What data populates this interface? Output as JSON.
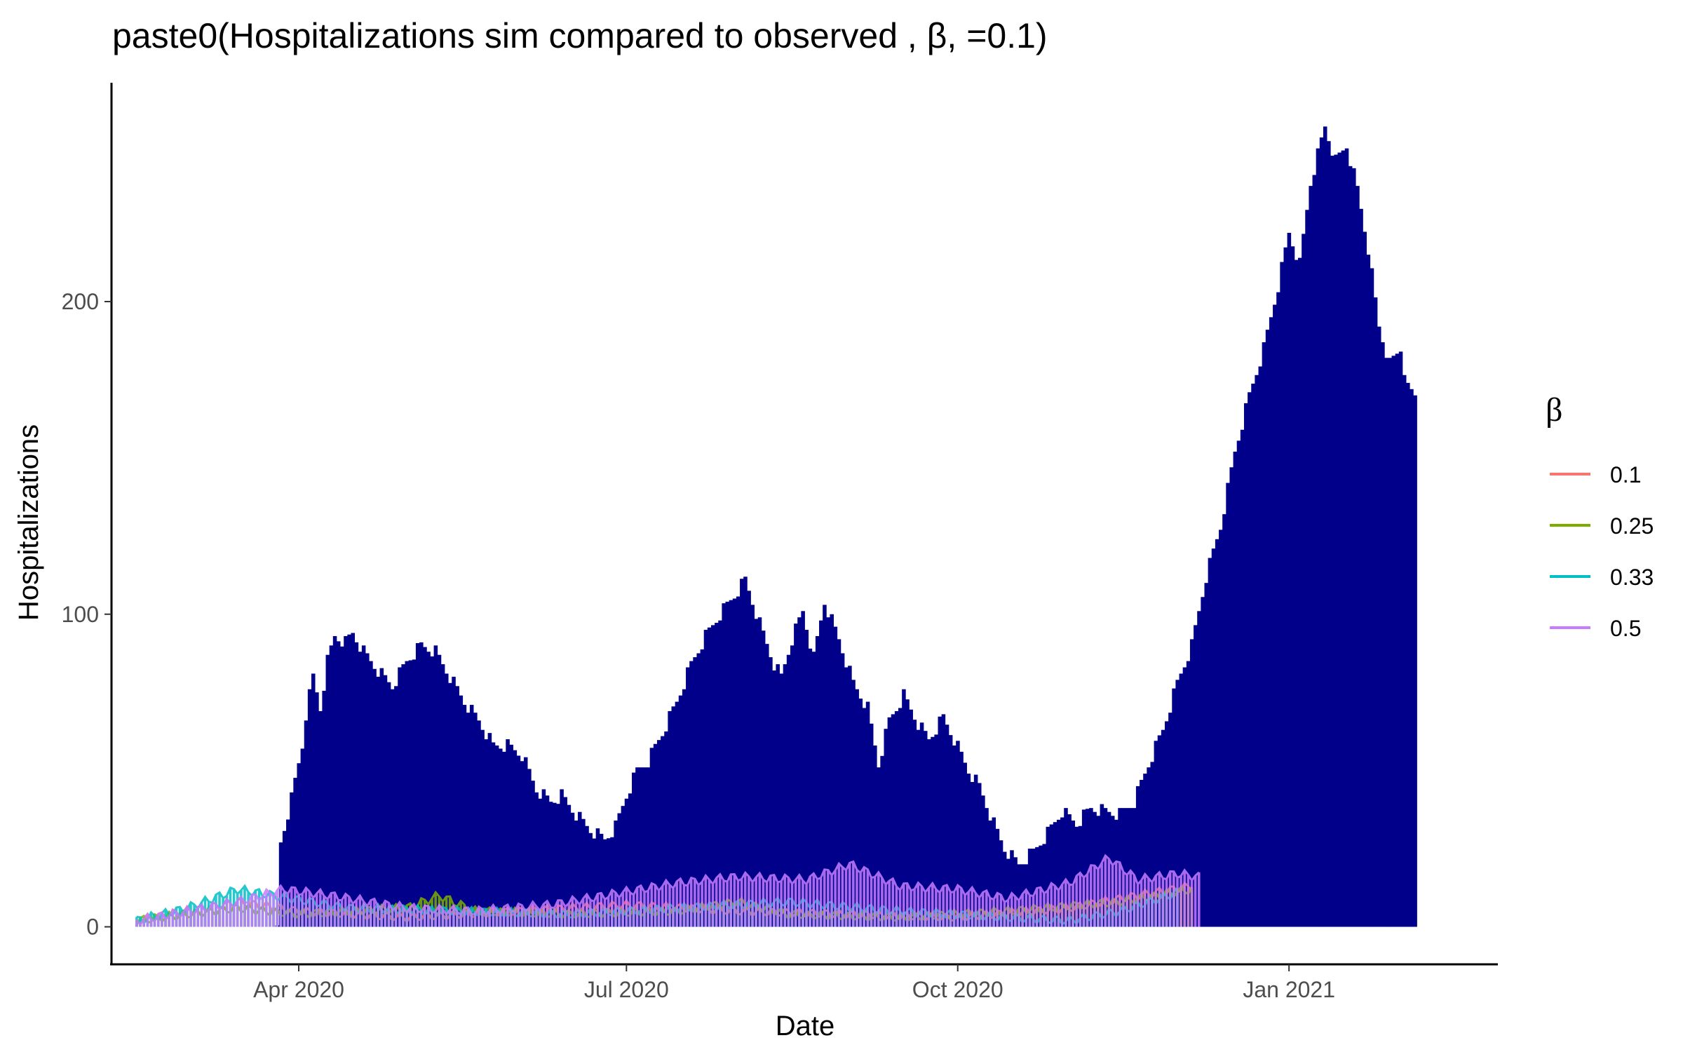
{
  "chart_data": {
    "type": "bar",
    "title": "paste0(Hospitalizations sim compared to observed , β, =0.1)",
    "xlabel": "Date",
    "ylabel": "Hospitalizations",
    "x_ticks": [
      "Apr 2020",
      "Jul 2020",
      "Oct 2020",
      "Jan 2021"
    ],
    "x_tick_dates": [
      "2020-04-01",
      "2020-07-01",
      "2020-10-01",
      "2021-01-01"
    ],
    "y_ticks": [
      0,
      100,
      200
    ],
    "xlim": [
      "2020-02-09",
      "2021-02-28"
    ],
    "ylim": [
      -12,
      270
    ],
    "grid": false,
    "legend_position": "right",
    "legend_title": "β",
    "observed": {
      "color": "#00008B",
      "keyframes": [
        [
          "2020-03-26",
          0
        ],
        [
          "2020-03-27",
          27
        ],
        [
          "2020-03-30",
          41
        ],
        [
          "2020-04-02",
          58
        ],
        [
          "2020-04-03",
          68
        ],
        [
          "2020-04-05",
          80
        ],
        [
          "2020-04-07",
          70
        ],
        [
          "2020-04-09",
          85
        ],
        [
          "2020-04-11",
          93
        ],
        [
          "2020-04-14",
          91
        ],
        [
          "2020-04-16",
          94
        ],
        [
          "2020-04-19",
          88
        ],
        [
          "2020-04-23",
          82
        ],
        [
          "2020-04-27",
          77
        ],
        [
          "2020-05-01",
          85
        ],
        [
          "2020-05-05",
          90
        ],
        [
          "2020-05-09",
          88
        ],
        [
          "2020-05-13",
          80
        ],
        [
          "2020-05-17",
          72
        ],
        [
          "2020-05-21",
          66
        ],
        [
          "2020-05-25",
          58
        ],
        [
          "2020-05-29",
          58
        ],
        [
          "2020-06-02",
          55
        ],
        [
          "2020-06-06",
          44
        ],
        [
          "2020-06-10",
          40
        ],
        [
          "2020-06-13",
          42
        ],
        [
          "2020-06-17",
          36
        ],
        [
          "2020-06-21",
          31
        ],
        [
          "2020-06-25",
          28
        ],
        [
          "2020-06-28",
          32
        ],
        [
          "2020-07-01",
          42
        ],
        [
          "2020-07-04",
          50
        ],
        [
          "2020-07-07",
          53
        ],
        [
          "2020-07-11",
          62
        ],
        [
          "2020-07-15",
          72
        ],
        [
          "2020-07-19",
          84
        ],
        [
          "2020-07-23",
          93
        ],
        [
          "2020-07-27",
          100
        ],
        [
          "2020-07-31",
          106
        ],
        [
          "2020-08-03",
          111
        ],
        [
          "2020-08-07",
          97
        ],
        [
          "2020-08-11",
          84
        ],
        [
          "2020-08-13",
          80
        ],
        [
          "2020-08-16",
          92
        ],
        [
          "2020-08-19",
          101
        ],
        [
          "2020-08-22",
          86
        ],
        [
          "2020-08-25",
          104
        ],
        [
          "2020-08-29",
          92
        ],
        [
          "2020-09-02",
          78
        ],
        [
          "2020-09-06",
          70
        ],
        [
          "2020-09-09",
          52
        ],
        [
          "2020-09-12",
          66
        ],
        [
          "2020-09-16",
          74
        ],
        [
          "2020-09-20",
          65
        ],
        [
          "2020-09-23",
          60
        ],
        [
          "2020-09-27",
          67
        ],
        [
          "2020-09-30",
          60
        ],
        [
          "2020-10-04",
          50
        ],
        [
          "2020-10-07",
          45
        ],
        [
          "2020-10-11",
          33
        ],
        [
          "2020-10-14",
          25
        ],
        [
          "2020-10-18",
          20
        ],
        [
          "2020-10-22",
          24
        ],
        [
          "2020-10-26",
          30
        ],
        [
          "2020-10-30",
          37
        ],
        [
          "2020-11-03",
          33
        ],
        [
          "2020-11-07",
          38
        ],
        [
          "2020-11-11",
          37
        ],
        [
          "2020-11-15",
          36
        ],
        [
          "2020-11-19",
          40
        ],
        [
          "2020-11-23",
          52
        ],
        [
          "2020-11-27",
          63
        ],
        [
          "2020-12-01",
          78
        ],
        [
          "2020-12-05",
          90
        ],
        [
          "2020-12-09",
          112
        ],
        [
          "2020-12-13",
          128
        ],
        [
          "2020-12-17",
          152
        ],
        [
          "2020-12-21",
          170
        ],
        [
          "2020-12-25",
          185
        ],
        [
          "2020-12-29",
          205
        ],
        [
          "2021-01-01",
          222
        ],
        [
          "2021-01-04",
          212
        ],
        [
          "2021-01-07",
          238
        ],
        [
          "2021-01-11",
          256
        ],
        [
          "2021-01-14",
          245
        ],
        [
          "2021-01-17",
          250
        ],
        [
          "2021-01-20",
          236
        ],
        [
          "2021-01-23",
          217
        ],
        [
          "2021-01-26",
          192
        ],
        [
          "2021-01-29",
          180
        ],
        [
          "2021-02-01",
          185
        ],
        [
          "2021-02-03",
          172
        ],
        [
          "2021-02-05",
          170
        ]
      ]
    },
    "series": [
      {
        "name": "0.1",
        "color": "#F8766D",
        "keyframes": [
          [
            "2020-02-16",
            2
          ],
          [
            "2020-03-01",
            5
          ],
          [
            "2020-03-15",
            8
          ],
          [
            "2020-04-01",
            5
          ],
          [
            "2020-05-01",
            3
          ],
          [
            "2020-06-01",
            5
          ],
          [
            "2020-07-01",
            7
          ],
          [
            "2020-08-01",
            5
          ],
          [
            "2020-09-01",
            4
          ],
          [
            "2020-10-01",
            3
          ],
          [
            "2020-11-01",
            6
          ],
          [
            "2020-11-20",
            10
          ],
          [
            "2020-12-05",
            13
          ]
        ]
      },
      {
        "name": "0.25",
        "color": "#7CAE00",
        "keyframes": [
          [
            "2020-02-16",
            2
          ],
          [
            "2020-03-01",
            4
          ],
          [
            "2020-03-15",
            6
          ],
          [
            "2020-04-01",
            4
          ],
          [
            "2020-05-01",
            6
          ],
          [
            "2020-05-10",
            10
          ],
          [
            "2020-05-20",
            5
          ],
          [
            "2020-06-15",
            4
          ],
          [
            "2020-07-15",
            5
          ],
          [
            "2020-08-01",
            8
          ],
          [
            "2020-08-15",
            4
          ],
          [
            "2020-09-15",
            3
          ],
          [
            "2020-10-15",
            5
          ],
          [
            "2020-11-15",
            8
          ],
          [
            "2020-12-05",
            12
          ]
        ]
      },
      {
        "name": "0.33",
        "color": "#00BFC4",
        "keyframes": [
          [
            "2020-02-16",
            2
          ],
          [
            "2020-03-01",
            6
          ],
          [
            "2020-03-15",
            12
          ],
          [
            "2020-03-25",
            10
          ],
          [
            "2020-04-15",
            6
          ],
          [
            "2020-05-15",
            5
          ],
          [
            "2020-06-15",
            4
          ],
          [
            "2020-07-15",
            6
          ],
          [
            "2020-08-15",
            8
          ],
          [
            "2020-09-15",
            5
          ],
          [
            "2020-10-15",
            3
          ],
          [
            "2020-11-01",
            2
          ],
          [
            "2020-11-15",
            5
          ],
          [
            "2020-12-01",
            11
          ]
        ]
      },
      {
        "name": "0.5",
        "color": "#C77CFF",
        "keyframes": [
          [
            "2020-02-16",
            2
          ],
          [
            "2020-03-01",
            5
          ],
          [
            "2020-03-15",
            8
          ],
          [
            "2020-03-28",
            12
          ],
          [
            "2020-04-10",
            10
          ],
          [
            "2020-05-01",
            6
          ],
          [
            "2020-05-20",
            5
          ],
          [
            "2020-06-10",
            7
          ],
          [
            "2020-06-25",
            10
          ],
          [
            "2020-07-15",
            14
          ],
          [
            "2020-08-01",
            16
          ],
          [
            "2020-08-20",
            15
          ],
          [
            "2020-09-01",
            20
          ],
          [
            "2020-09-15",
            13
          ],
          [
            "2020-10-01",
            12
          ],
          [
            "2020-10-15",
            9
          ],
          [
            "2020-11-01",
            14
          ],
          [
            "2020-11-12",
            22
          ],
          [
            "2020-11-20",
            15
          ],
          [
            "2020-12-01",
            17
          ],
          [
            "2020-12-07",
            16
          ]
        ]
      }
    ]
  }
}
